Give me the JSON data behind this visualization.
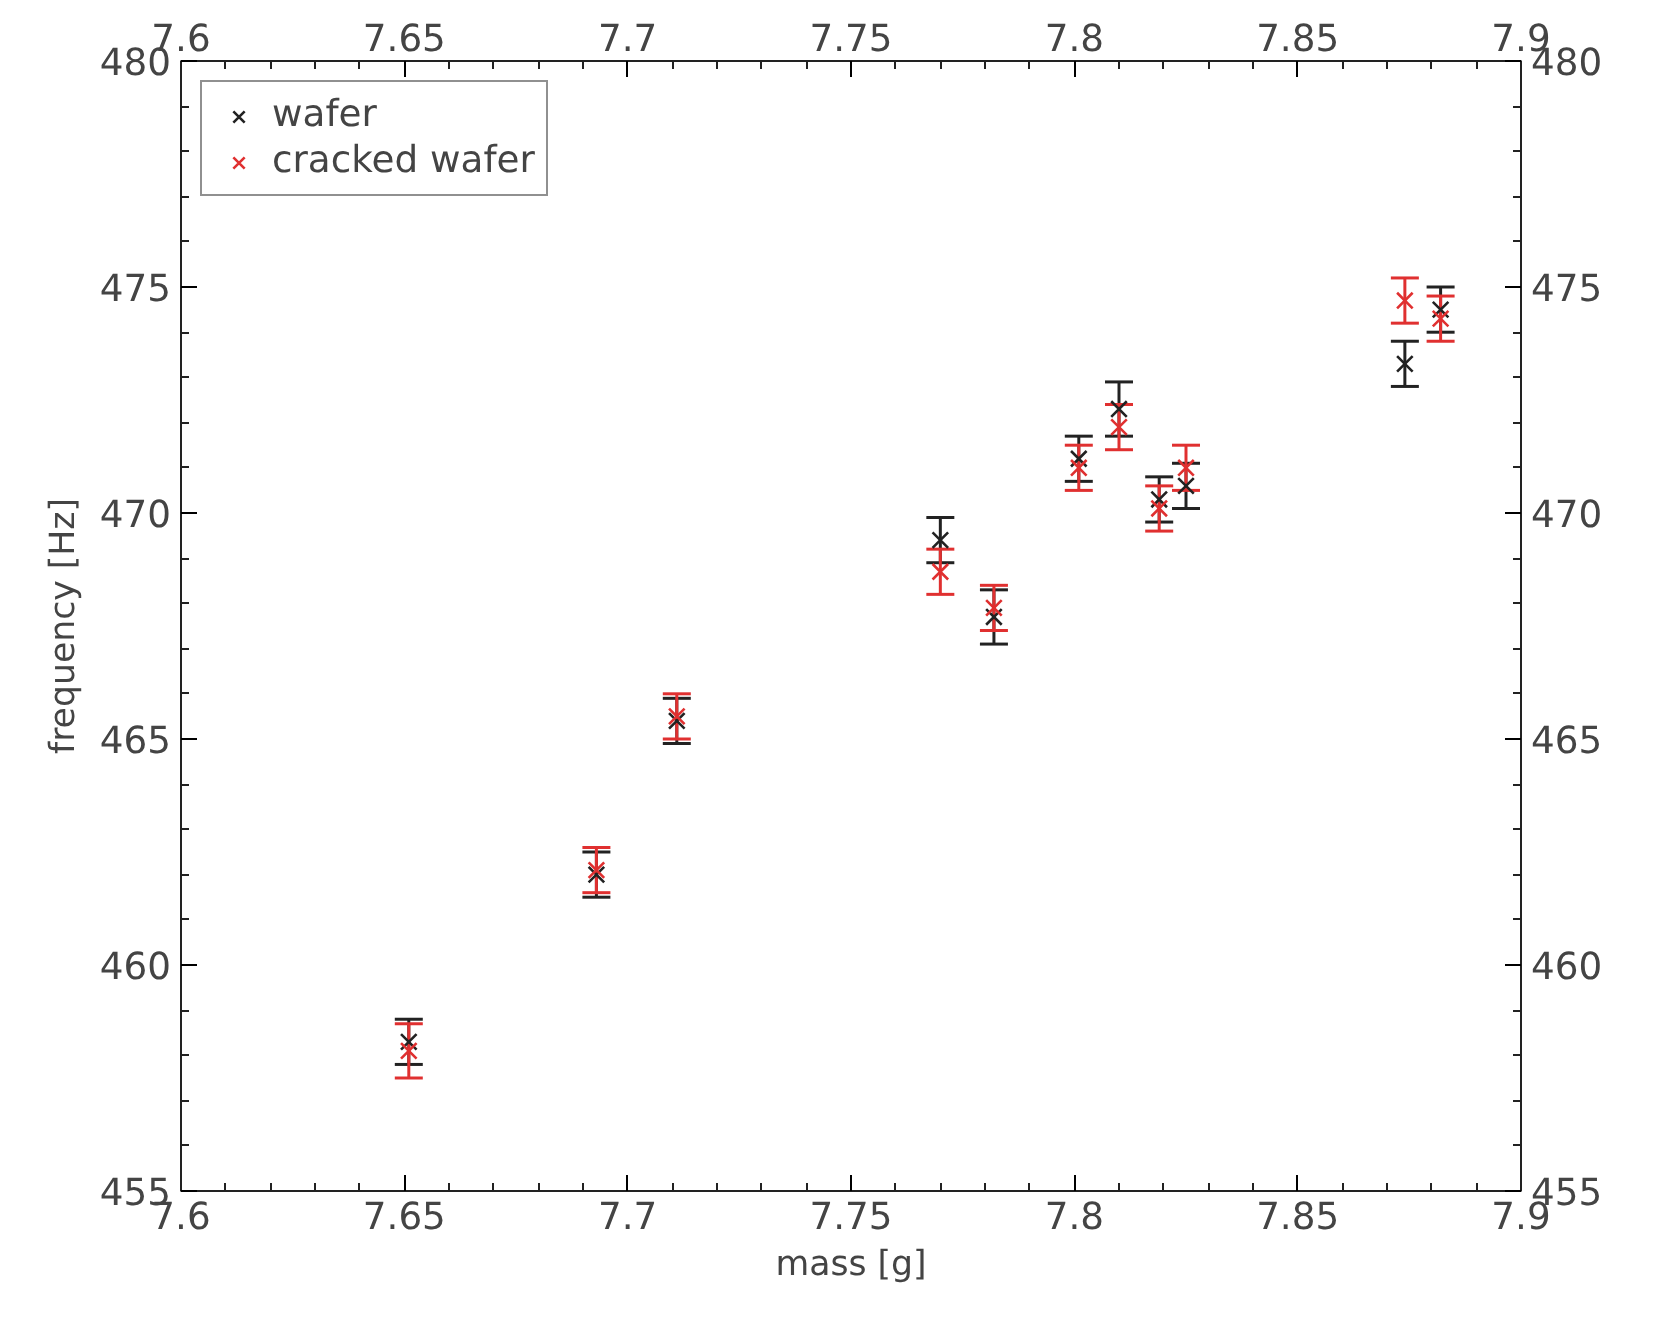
{
  "chart_data": {
    "type": "scatter",
    "xlabel": "mass [g]",
    "ylabel": "frequency [Hz]",
    "xlim": [
      7.6,
      7.9
    ],
    "xticks": [
      7.6,
      7.65,
      7.7,
      7.75,
      7.8,
      7.85,
      7.9
    ],
    "x2lim": [
      7.6,
      7.9
    ],
    "x2ticks": [
      7.6,
      7.65,
      7.7,
      7.75,
      7.8,
      7.85,
      7.9
    ],
    "ylim": [
      455,
      480
    ],
    "yticks": [
      455,
      460,
      465,
      470,
      475,
      480
    ],
    "y2lim": [
      455,
      480
    ],
    "y2ticks": [
      455,
      460,
      465,
      470,
      475,
      480
    ],
    "marker": "cross",
    "legend": "top left",
    "grid": false,
    "series": [
      {
        "name": "wafer",
        "color": "#222222",
        "x": [
          7.651,
          7.693,
          7.711,
          7.77,
          7.782,
          7.801,
          7.81,
          7.819,
          7.825,
          7.874,
          7.882
        ],
        "values": [
          458.3,
          462.0,
          465.4,
          469.4,
          467.7,
          471.2,
          472.3,
          470.3,
          470.6,
          473.3,
          474.5
        ],
        "errors": [
          0.5,
          0.5,
          0.5,
          0.5,
          0.6,
          0.5,
          0.6,
          0.5,
          0.5,
          0.5,
          0.5
        ]
      },
      {
        "name": "cracked wafer",
        "color": "#e03030",
        "x": [
          7.651,
          7.693,
          7.711,
          7.77,
          7.782,
          7.801,
          7.81,
          7.819,
          7.825,
          7.874,
          7.882
        ],
        "values": [
          458.1,
          462.1,
          465.5,
          468.7,
          467.9,
          471.0,
          471.9,
          470.1,
          471.0,
          474.7,
          474.3
        ],
        "errors": [
          0.6,
          0.5,
          0.5,
          0.5,
          0.5,
          0.5,
          0.5,
          0.5,
          0.5,
          0.5,
          0.5
        ]
      }
    ]
  }
}
